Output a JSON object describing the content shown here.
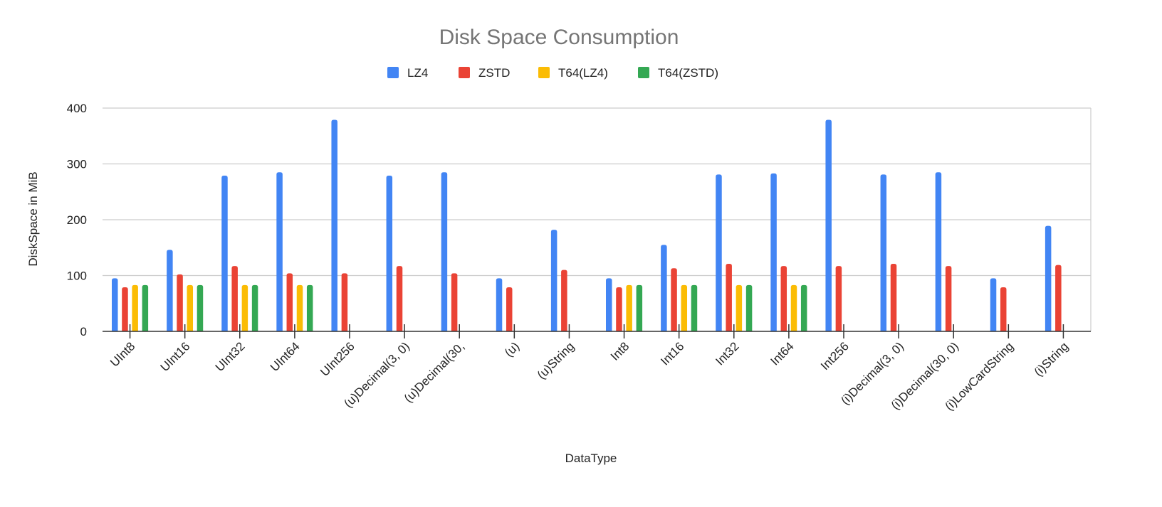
{
  "chart_data": {
    "type": "bar",
    "title": "Disk Space Consumption",
    "xlabel": "DataType",
    "ylabel": "DiskSpace in MiB",
    "ylim": [
      0,
      400
    ],
    "yticks": [
      0,
      100,
      200,
      300,
      400
    ],
    "grid": true,
    "legend_position": "top",
    "categories": [
      "UInt8",
      "UInt16",
      "UInt32",
      "UInt64",
      "UInt256",
      "(u)Decimal(3, 0)",
      "(u)Decimal(30,",
      "(u)",
      "(u)String",
      "Int8",
      "Int16",
      "Int32",
      "Int64",
      "Int256",
      "(i)Decimal(3, 0)",
      "(i)Decimal(30, 0)",
      "(i)LowCardString",
      "(i)String"
    ],
    "series": [
      {
        "name": "LZ4",
        "color": "#4285F4",
        "values": [
          95,
          146,
          279,
          285,
          379,
          279,
          285,
          95,
          182,
          95,
          155,
          281,
          283,
          379,
          281,
          285,
          95,
          189
        ]
      },
      {
        "name": "ZSTD",
        "color": "#EA4335",
        "values": [
          79,
          102,
          117,
          104,
          104,
          117,
          104,
          79,
          110,
          79,
          113,
          121,
          117,
          117,
          121,
          117,
          79,
          119
        ]
      },
      {
        "name": "T64(LZ4)",
        "color": "#FBBC04",
        "values": [
          83,
          83,
          83,
          83,
          null,
          null,
          null,
          null,
          null,
          83,
          83,
          83,
          83,
          null,
          null,
          null,
          null,
          null
        ]
      },
      {
        "name": "T64(ZSTD)",
        "color": "#34A853",
        "values": [
          83,
          83,
          83,
          83,
          null,
          null,
          null,
          null,
          null,
          83,
          83,
          83,
          83,
          null,
          null,
          null,
          null,
          null
        ]
      }
    ]
  }
}
